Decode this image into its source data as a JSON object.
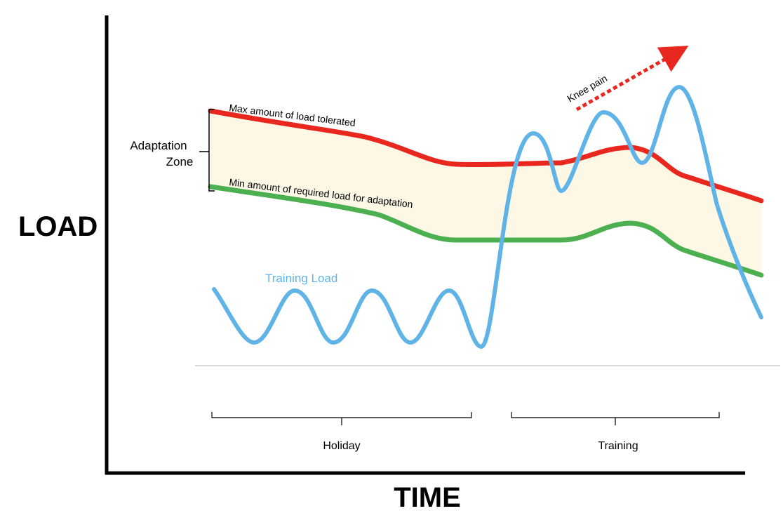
{
  "colors": {
    "max_line": "#e8281e",
    "min_line": "#4caf50",
    "training_line": "#5fb3e6",
    "zone_fill": "#fdf8e6",
    "axis": "#000000",
    "baseline": "#d9d9d9",
    "arrow": "#e8281e"
  },
  "axes": {
    "y_title": "LOAD",
    "x_title": "TIME"
  },
  "zone": {
    "label_line1": "Adaptation",
    "label_line2": "Zone"
  },
  "lines": {
    "max_label": "Max amount of load tolerated",
    "min_label": "Min amount of required load for adaptation",
    "training_label": "Training Load"
  },
  "annotation": {
    "knee_pain": "Knee pain"
  },
  "periods": {
    "holiday": "Holiday",
    "training": "Training"
  }
}
